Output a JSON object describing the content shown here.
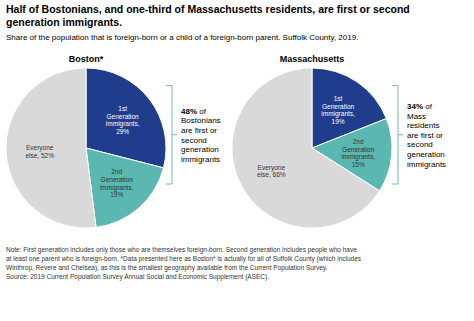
{
  "title": "Half of Bostonians, and one-third of Massachusetts residents, are first or second\ngeneration immigrants.",
  "subtitle": "Share of the population that is foreign-born or a child of a foreign-born parent. Suffolk County, 2019.",
  "note": "Note: First generation includes only those who are themselves foreign-born. Second generation includes people who have\nat least one parent who is foreign-born. *Data presented here as Boston* is actually for all of Suffolk County (which includes\nWinthrop, Revere and Chelsea), as this is the smallest geography available from the Current Population Survey.\nSource: 2019 Current Population Survey Annual Social and Economic Supplement (ASEC).",
  "chart_data": [
    {
      "type": "pie",
      "title": "Boston*",
      "categories": [
        "1st\nGeneration\nimmigrants,\n29%",
        "2nd\nGeneration\nimmigrants,\n19%",
        "Everyone\nelse, 52%"
      ],
      "values": [
        29,
        19,
        52
      ],
      "colors": [
        "#1f3d8c",
        "#5bb8b0",
        "#d9d9d9"
      ],
      "annotation_bold": "48%",
      "annotation_rest": " of\nBostonians\nare first or\nsecond\ngeneration\nimmigrants"
    },
    {
      "type": "pie",
      "title": "Massachusetts",
      "categories": [
        "1st\nGeneration\nimmigrants,\n19%",
        "2nd\nGeneration\nimmigrants,\n15%",
        "Everyone\nelse, 66%"
      ],
      "values": [
        19,
        15,
        66
      ],
      "colors": [
        "#1f3d8c",
        "#5bb8b0",
        "#d9d9d9"
      ],
      "annotation_bold": "34%",
      "annotation_rest": " of\nMass\nresidents\nare first or\nsecond\ngeneration\nimmigrants"
    }
  ]
}
